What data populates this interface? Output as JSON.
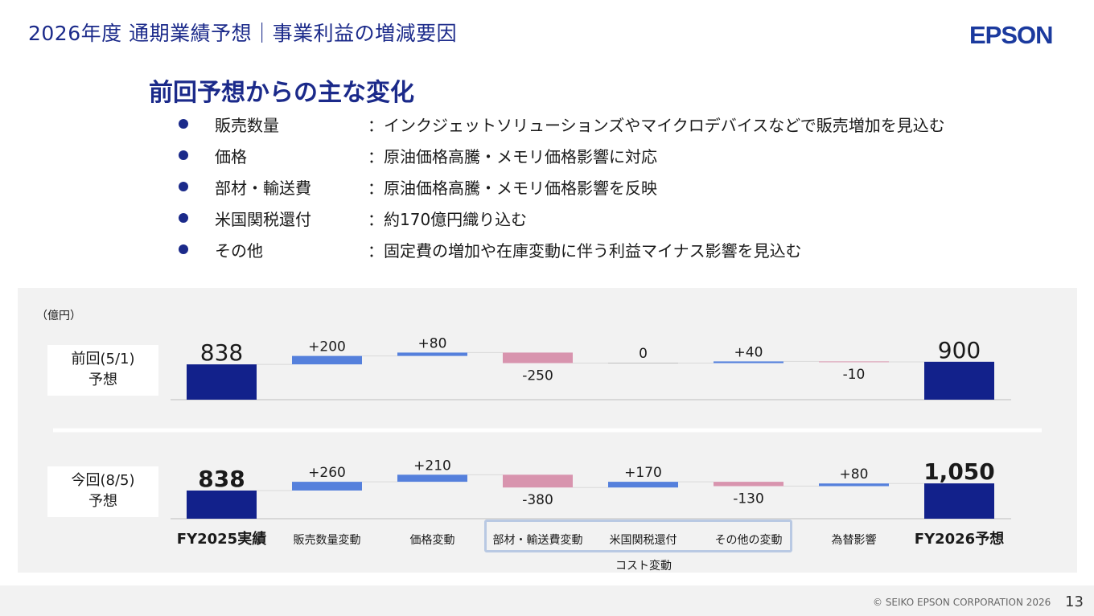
{
  "page": {
    "title": "2026年度 通期業績予想｜事業利益の増減要因",
    "logo": "EPSON",
    "heading": "前回予想からの主な変化",
    "copyright": "© SEIKO EPSON CORPORATION 2026",
    "page_number": "13"
  },
  "bullets": [
    {
      "label": "販売数量",
      "desc": "：インクジェットソリューションズやマイクロデバイスなどで販売増加を見込む"
    },
    {
      "label": "価格",
      "desc": "：原油価格高騰・メモリ価格影響に対応"
    },
    {
      "label": "部材・輸送費",
      "desc": "：原油価格高騰・メモリ価格影響を反映"
    },
    {
      "label": "米国関税還付",
      "desc": "：約170億円織り込む"
    },
    {
      "label": "その他",
      "desc": "：固定費の増加や在庫変動に伴う利益マイナス影響を見込む"
    }
  ],
  "chart_data": {
    "type": "bar",
    "subtype": "waterfall",
    "unit_label": "（億円）",
    "categories": [
      "FY2025実績",
      "販売数量変動",
      "価格変動",
      "部材・輸送費変動",
      "米国関税還付",
      "その他の変動",
      "為替影響",
      "FY2026予想"
    ],
    "group_label": "コスト変動",
    "series": [
      {
        "name": "前回(5/1)\n予想",
        "values": [
          838,
          200,
          80,
          -250,
          0,
          40,
          -10,
          900
        ],
        "labels": [
          "838",
          "+200",
          "+80",
          "-250",
          "0",
          "+40",
          "-10",
          "900"
        ]
      },
      {
        "name": "今回(8/5)\n予想",
        "values": [
          838,
          260,
          210,
          -380,
          170,
          -130,
          80,
          1050
        ],
        "labels": [
          "838",
          "+260",
          "+210",
          "-380",
          "+170",
          "-130",
          "+80",
          "1,050"
        ]
      }
    ],
    "colors": {
      "total": "#12218b",
      "increase": "#5580dc",
      "decrease": "#d894ae",
      "connector": "#d9d9d9",
      "axis": "#d0d0d0"
    }
  }
}
